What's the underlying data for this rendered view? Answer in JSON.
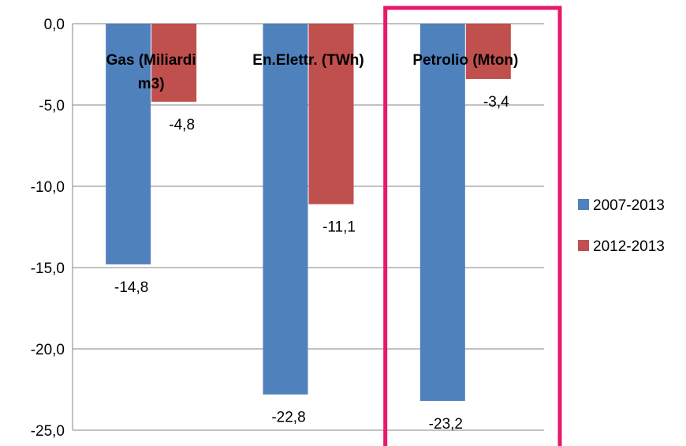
{
  "chart_data": {
    "type": "bar",
    "title": "",
    "xlabel": "",
    "ylabel": "",
    "categories": [
      [
        "Gas  (Miliardi",
        "m3)"
      ],
      [
        "En.Elettr. (TWh)"
      ],
      [
        "Petrolio (Mton)"
      ]
    ],
    "series": [
      {
        "name": "2007-2013",
        "values": [
          -14.8,
          -22.8,
          -23.2
        ],
        "labels": [
          "-14,8",
          "-22,8",
          "-23,2"
        ],
        "color": "#4f81bd"
      },
      {
        "name": "2012-2013",
        "values": [
          -4.8,
          -11.1,
          -3.4
        ],
        "labels": [
          "-4,8",
          "-11,1",
          "-3,4"
        ],
        "color": "#c0504d"
      }
    ],
    "ylim": [
      -25,
      0
    ],
    "yticks": [
      0,
      -5,
      -10,
      -15,
      -20,
      -25
    ],
    "ytick_labels": [
      "0,0",
      "-5,0",
      "-10,0",
      "-15,0",
      "-20,0",
      "-25,0"
    ],
    "grid": true,
    "legend_position": "right",
    "highlight": {
      "category_index": 2,
      "color": "#e8196b"
    },
    "colors": {
      "grid": "#868686",
      "axis": "#868686"
    }
  }
}
